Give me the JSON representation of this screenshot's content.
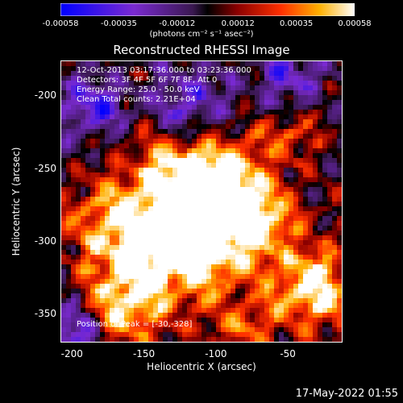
{
  "chart_data": {
    "type": "heatmap",
    "title": "Reconstructed RHESSI Image",
    "xlabel": "Heliocentric X (arcsec)",
    "ylabel": "Heliocentric Y (arcsec)",
    "xlim": [
      -208,
      -12
    ],
    "ylim": [
      -370,
      -176
    ],
    "x_ticks": [
      "-200",
      "-150",
      "-100",
      "-50"
    ],
    "x_tick_values": [
      -200,
      -150,
      -100,
      -50
    ],
    "y_ticks": [
      "-200",
      "-250",
      "-300",
      "-350"
    ],
    "y_tick_values": [
      -200,
      -250,
      -300,
      -350
    ],
    "colorbar": {
      "ticks": [
        "-0.00058",
        "-0.00035",
        "-0.00012",
        "0.00012",
        "0.00035",
        "0.00058"
      ],
      "tick_values": [
        -0.00058,
        -0.00035,
        -0.00012,
        0.00012,
        0.00035,
        0.00058
      ],
      "range": [
        -0.00058,
        0.00058
      ],
      "label": "(photons cm⁻² s⁻¹ asec⁻²)"
    },
    "annotations": [
      "12-Oct-2013 03:17:36.000 to 03:23:36.000",
      "Detectors: 3F 4F 5F 6F 7F 8F, Att 0",
      "Energy Range: 25.0 - 50.0 keV",
      "Clean     Total counts: 2.21E+04"
    ],
    "peak_label": "Position of Peak = [-30,-328]",
    "peak": [
      -30,
      -328
    ],
    "grid": false
  },
  "footer": {
    "date": "17-May-2022 01:55"
  },
  "colors": {
    "background": "#000000",
    "foreground": "#ffffff"
  }
}
